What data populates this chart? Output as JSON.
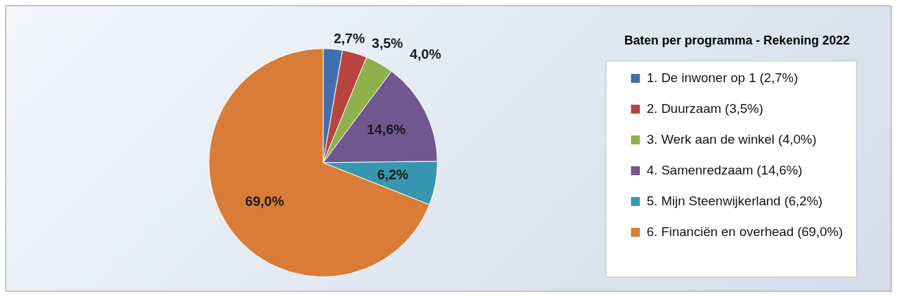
{
  "chart_data": {
    "type": "pie",
    "title": "Baten per programma - Rekening 2022",
    "categories": [
      "1. De inwoner op 1 (2,7%)",
      "2. Duurzaam (3,5%)",
      "3. Werk aan de winkel (4,0%)",
      "4. Samenredzaam (14,6%)",
      "5. Mijn Steenwijkerland (6,2%)",
      "6. Financiën en overhead (69,0%)"
    ],
    "values": [
      2.7,
      3.5,
      4.0,
      14.6,
      6.2,
      69.0
    ],
    "value_labels": [
      "2,7%",
      "3,5%",
      "4,0%",
      "14,6%",
      "6,2%",
      "69,0%"
    ],
    "colors": [
      "#3f6fb0",
      "#b84440",
      "#8fb04a",
      "#71578f",
      "#3797b0",
      "#d97c38"
    ],
    "legend": "right"
  }
}
